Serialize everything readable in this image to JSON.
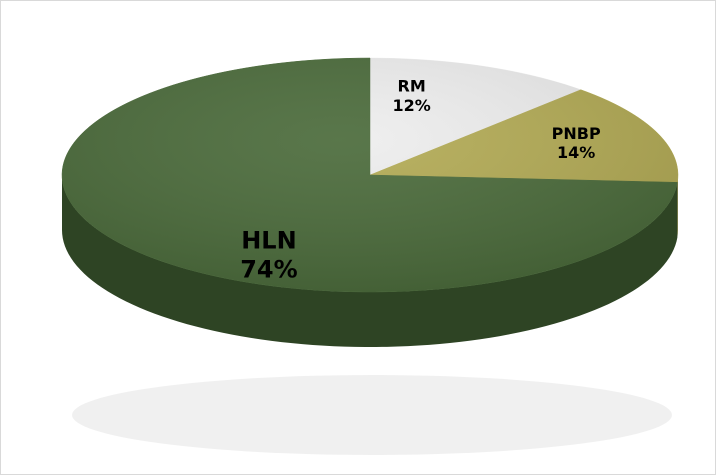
{
  "chart_data": {
    "type": "pie",
    "categories": [
      "RM",
      "PNBP",
      "HLN"
    ],
    "values": [
      12,
      14,
      74
    ],
    "value_labels": [
      "12%",
      "14%",
      "74%"
    ],
    "colors": [
      "#eeeeee",
      "#b3ab55",
      "#4b6b3b"
    ],
    "side_colors": [
      "#bdbdbd",
      "#8a8340",
      "#2e4424"
    ],
    "start_angle": 0,
    "direction": "clockwise"
  }
}
